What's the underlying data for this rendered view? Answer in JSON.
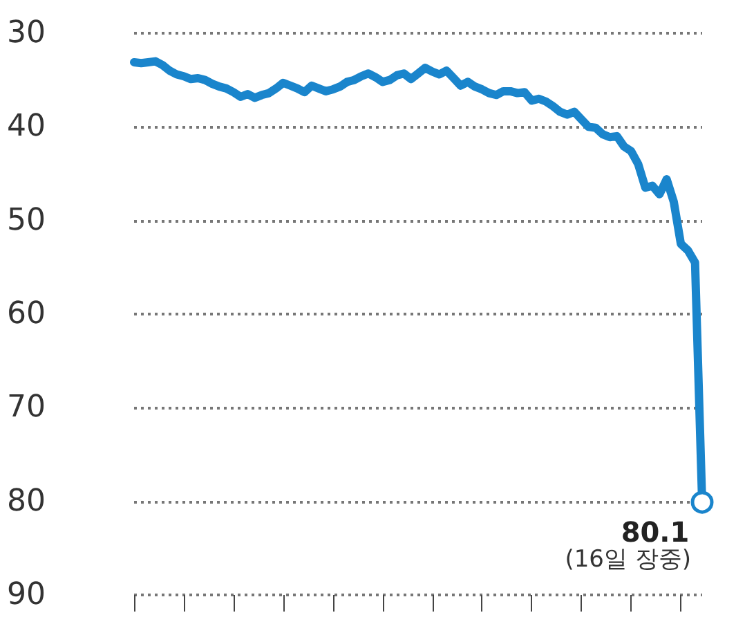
{
  "chart_data": {
    "type": "line",
    "categories": [
      null,
      null,
      null,
      null,
      null,
      null,
      null,
      null,
      null,
      null,
      null,
      null,
      null,
      null,
      null,
      null,
      null,
      null,
      null,
      null,
      null,
      null,
      null,
      null,
      null,
      null,
      null,
      null,
      null,
      null,
      null,
      null,
      null,
      null,
      null,
      null,
      null,
      null,
      null,
      null,
      null,
      null,
      null,
      null,
      null,
      null,
      null,
      null,
      null,
      null,
      null,
      null,
      null,
      null,
      null,
      null,
      null,
      null,
      null,
      null,
      null,
      null,
      null,
      null,
      null,
      null,
      null,
      null,
      null,
      null,
      null,
      null,
      null,
      null,
      null,
      null,
      null,
      null,
      null,
      null,
      null
    ],
    "series": [
      {
        "color": "#1a85cc",
        "values": [
          33.1,
          33.2,
          33.1,
          33.0,
          33.4,
          34.0,
          34.4,
          34.6,
          34.9,
          34.8,
          35.0,
          35.4,
          35.7,
          35.9,
          36.3,
          36.8,
          36.5,
          36.9,
          36.6,
          36.4,
          35.9,
          35.3,
          35.6,
          35.9,
          36.3,
          35.6,
          35.9,
          36.2,
          36.0,
          35.7,
          35.2,
          35.0,
          34.6,
          34.3,
          34.7,
          35.2,
          35.0,
          34.5,
          34.3,
          34.9,
          34.3,
          33.7,
          34.1,
          34.4,
          34.0,
          34.8,
          35.6,
          35.2,
          35.7,
          36.0,
          36.4,
          36.6,
          36.2,
          36.2,
          36.4,
          36.3,
          37.2,
          37.0,
          37.3,
          37.8,
          38.4,
          38.7,
          38.4,
          39.2,
          40.0,
          40.1,
          40.8,
          41.1,
          41.0,
          42.1,
          42.6,
          44.0,
          46.5,
          46.3,
          47.2,
          45.6,
          48.0,
          52.5,
          53.2,
          54.5,
          80.1
        ],
        "value_labels": [
          null,
          null,
          null,
          null,
          null,
          null,
          null,
          null,
          null,
          null,
          null,
          null,
          null,
          null,
          null,
          null,
          null,
          null,
          null,
          null,
          null,
          null,
          null,
          null,
          null,
          null,
          null,
          null,
          null,
          null,
          null,
          null,
          null,
          null,
          null,
          null,
          null,
          null,
          null,
          null,
          null,
          null,
          null,
          null,
          null,
          null,
          null,
          null,
          null,
          null,
          null,
          null,
          null,
          null,
          null,
          null,
          null,
          null,
          null,
          null,
          null,
          null,
          null,
          null,
          null,
          null,
          null,
          null,
          null,
          null,
          null,
          null,
          null,
          null,
          null,
          null,
          null,
          null,
          null,
          null,
          "80.1"
        ]
      }
    ],
    "ylim": [
      90,
      30
    ],
    "yticks": [
      30,
      40,
      50,
      60,
      70,
      80,
      90
    ],
    "grid": "y",
    "marker": "none",
    "line_style": "solid",
    "tick_labels": "y",
    "annotations": [
      "(16일 장중)"
    ]
  }
}
